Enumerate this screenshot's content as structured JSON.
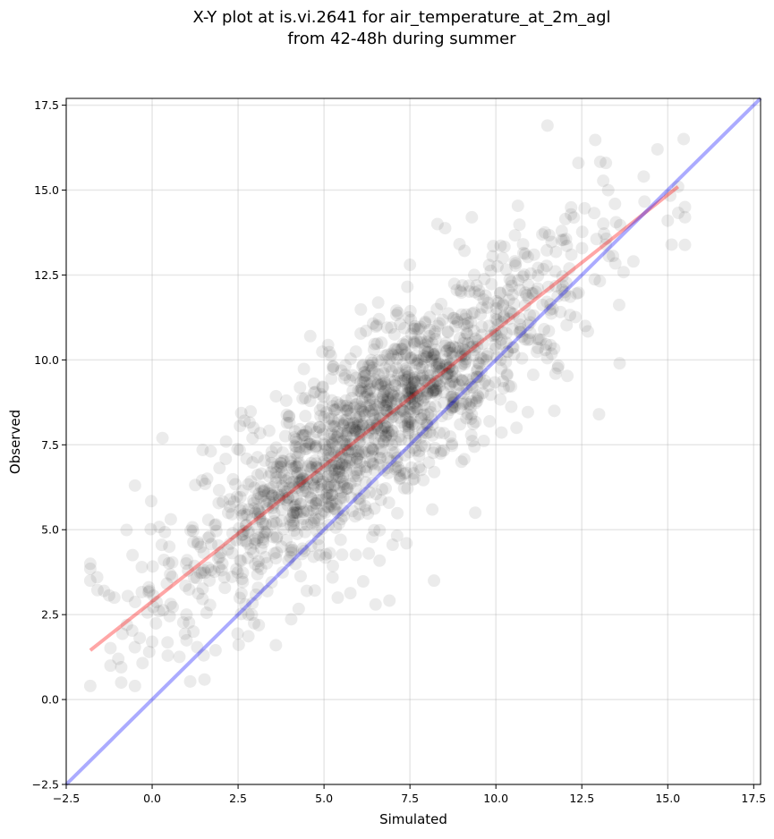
{
  "chart_data": {
    "type": "scatter",
    "title": "X-Y plot at is.vi.2641 for air_temperature_at_2m_agl",
    "subtitle": "from 42-48h during summer",
    "xlabel": "Simulated",
    "ylabel": "Observed",
    "xlim": [
      -2.5,
      17.7
    ],
    "ylim": [
      -2.5,
      17.7
    ],
    "xticks": [
      -2.5,
      0.0,
      2.5,
      5.0,
      7.5,
      10.0,
      12.5,
      15.0,
      17.5
    ],
    "yticks": [
      -2.5,
      0.0,
      2.5,
      5.0,
      7.5,
      10.0,
      12.5,
      15.0,
      17.5
    ],
    "xtick_labels": [
      "−2.5",
      "0.0",
      "2.5",
      "5.0",
      "7.5",
      "10.0",
      "12.5",
      "15.0",
      "17.5"
    ],
    "ytick_labels": [
      "−2.5",
      "0.0",
      "2.5",
      "5.0",
      "7.5",
      "10.0",
      "12.5",
      "15.0",
      "17.5"
    ],
    "grid": true,
    "point_color": "#000000",
    "point_alpha": 0.08,
    "point_count": 1600,
    "points_sample": [
      [
        -1.8,
        3.5
      ],
      [
        -1.6,
        3.6
      ],
      [
        -1.4,
        3.2
      ],
      [
        -1.1,
        3.0
      ],
      [
        -0.9,
        0.5
      ],
      [
        -0.9,
        0.95
      ],
      [
        -0.5,
        0.4
      ],
      [
        -0.5,
        6.3
      ],
      [
        -0.3,
        3.9
      ],
      [
        0.0,
        1.7
      ],
      [
        0.2,
        2.6
      ],
      [
        0.3,
        7.7
      ],
      [
        0.5,
        4.5
      ],
      [
        1.0,
        2.5
      ],
      [
        1.2,
        2.0
      ],
      [
        1.5,
        1.3
      ],
      [
        1.6,
        6.5
      ],
      [
        2.1,
        3.6
      ],
      [
        2.8,
        2.5
      ],
      [
        3.0,
        5.5
      ],
      [
        3.6,
        1.6
      ],
      [
        3.9,
        8.8
      ],
      [
        4.2,
        5.9
      ],
      [
        4.5,
        3.2
      ],
      [
        4.6,
        10.7
      ],
      [
        5.0,
        7.0
      ],
      [
        5.4,
        3.0
      ],
      [
        5.6,
        6.9
      ],
      [
        6.0,
        8.1
      ],
      [
        6.3,
        4.3
      ],
      [
        6.5,
        2.8
      ],
      [
        6.6,
        11.2
      ],
      [
        7.0,
        7.9
      ],
      [
        7.4,
        4.6
      ],
      [
        7.5,
        12.8
      ],
      [
        8.0,
        9.0
      ],
      [
        8.2,
        3.5
      ],
      [
        8.3,
        14.0
      ],
      [
        8.7,
        10.0
      ],
      [
        9.0,
        7.0
      ],
      [
        9.3,
        14.2
      ],
      [
        9.4,
        5.5
      ],
      [
        9.8,
        11.0
      ],
      [
        10.2,
        13.0
      ],
      [
        10.6,
        8.0
      ],
      [
        11.0,
        10.8
      ],
      [
        11.5,
        16.9
      ],
      [
        11.7,
        8.5
      ],
      [
        12.0,
        12.0
      ],
      [
        12.4,
        15.8
      ],
      [
        12.6,
        11.0
      ],
      [
        13.0,
        8.4
      ],
      [
        13.2,
        15.8
      ],
      [
        13.6,
        9.9
      ],
      [
        14.0,
        12.9
      ],
      [
        14.3,
        15.4
      ],
      [
        14.7,
        16.2
      ],
      [
        15.0,
        14.1
      ],
      [
        15.3,
        15.1
      ],
      [
        15.5,
        14.5
      ]
    ],
    "lines": [
      {
        "color": "#ff0000",
        "alpha": 0.35,
        "x": [
          -1.8,
          15.3
        ],
        "y": [
          1.45,
          15.1
        ]
      },
      {
        "color": "#0000ff",
        "alpha": 0.33,
        "x": [
          -2.5,
          17.7
        ],
        "y": [
          -2.5,
          17.7
        ]
      }
    ]
  }
}
